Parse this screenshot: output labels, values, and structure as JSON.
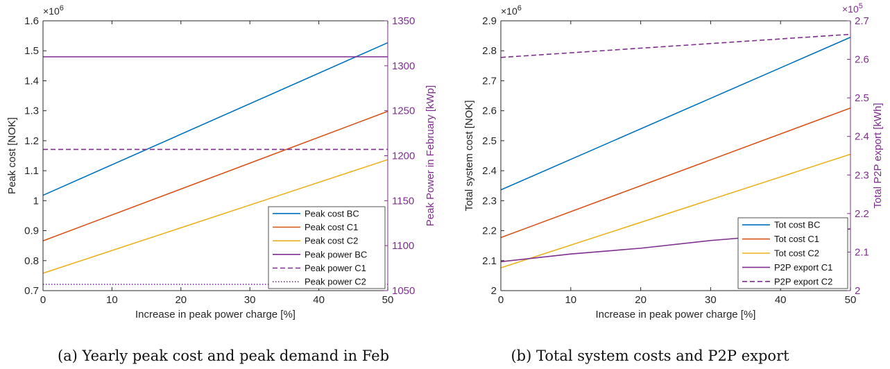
{
  "chart_data": [
    {
      "type": "line",
      "caption": "(a) Yearly peak cost and peak demand in Feb",
      "xlabel": "Increase in peak power charge [%]",
      "ylabel": "Peak cost [NOK]",
      "ylabel_right": "Peak Power in February [kWp]",
      "y_exponent": "×10",
      "y_exponent_power": "6",
      "xlim": [
        0,
        50
      ],
      "ylim": [
        0.7,
        1.6
      ],
      "ylim_right": [
        1050,
        1350
      ],
      "xticks": [
        "0",
        "10",
        "20",
        "30",
        "40",
        "50"
      ],
      "yticks": [
        "0.7",
        "0.8",
        "0.9",
        "1",
        "1.1",
        "1.2",
        "1.3",
        "1.4",
        "1.5",
        "1.6"
      ],
      "yticks_right": [
        "1050",
        "1100",
        "1150",
        "1200",
        "1250",
        "1300",
        "1350"
      ],
      "legend_position": "bottom-right",
      "grid": false,
      "series": [
        {
          "name": "Peak cost BC",
          "axis": "left",
          "color": "#0072BD",
          "dash": "solid",
          "x": [
            0,
            50
          ],
          "y": [
            1.018,
            1.527
          ]
        },
        {
          "name": "Peak cost C1",
          "axis": "left",
          "color": "#D95319",
          "dash": "solid",
          "x": [
            0,
            50
          ],
          "y": [
            0.866,
            1.298
          ]
        },
        {
          "name": "Peak cost C2",
          "axis": "left",
          "color": "#EDB120",
          "dash": "solid",
          "x": [
            0,
            50
          ],
          "y": [
            0.758,
            1.137
          ]
        },
        {
          "name": "Peak power BC",
          "axis": "right",
          "color": "#7E2F8E",
          "dash": "solid",
          "x": [
            0,
            50
          ],
          "y": [
            1310,
            1310
          ]
        },
        {
          "name": "Peak power C1",
          "axis": "right",
          "color": "#7E2F8E",
          "dash": "dashed",
          "x": [
            0,
            50
          ],
          "y": [
            1207,
            1207
          ]
        },
        {
          "name": "Peak power C2",
          "axis": "right",
          "color": "#7E2F8E",
          "dash": "dotted",
          "x": [
            0,
            50
          ],
          "y": [
            1057,
            1057
          ]
        }
      ]
    },
    {
      "type": "line",
      "caption": "(b) Total system costs and P2P export",
      "xlabel": "Increase in peak power charge [%]",
      "ylabel": "Total system cost [NOK]",
      "ylabel_right": "Total P2P export [kWh]",
      "y_exponent": "×10",
      "y_exponent_power": "6",
      "y_exponent_right": "×10",
      "y_exponent_right_power": "5",
      "xlim": [
        0,
        50
      ],
      "ylim": [
        2.0,
        2.9
      ],
      "ylim_right": [
        2.0,
        2.7
      ],
      "xticks": [
        "0",
        "10",
        "20",
        "30",
        "40",
        "50"
      ],
      "yticks": [
        "2",
        "2.1",
        "2.2",
        "2.3",
        "2.4",
        "2.5",
        "2.6",
        "2.7",
        "2.8",
        "2.9"
      ],
      "yticks_right": [
        "2",
        "2.1",
        "2.2",
        "2.3",
        "2.4",
        "2.5",
        "2.6",
        "2.7"
      ],
      "legend_position": "bottom-right",
      "grid": false,
      "series": [
        {
          "name": "Tot cost BC",
          "axis": "left",
          "color": "#0072BD",
          "dash": "solid",
          "x": [
            0,
            50
          ],
          "y": [
            2.336,
            2.845
          ]
        },
        {
          "name": "Tot cost C1",
          "axis": "left",
          "color": "#D95319",
          "dash": "solid",
          "x": [
            0,
            50
          ],
          "y": [
            2.177,
            2.609
          ]
        },
        {
          "name": "Tot cost C2",
          "axis": "left",
          "color": "#EDB120",
          "dash": "solid",
          "x": [
            0,
            50
          ],
          "y": [
            2.076,
            2.455
          ]
        },
        {
          "name": "P2P export C1",
          "axis": "right",
          "color": "#7E2F8E",
          "dash": "solid",
          "x": [
            0,
            10,
            20,
            30,
            40,
            50
          ],
          "y": [
            2.075,
            2.095,
            2.11,
            2.13,
            2.145,
            2.16
          ]
        },
        {
          "name": "P2P export C2",
          "axis": "right",
          "color": "#7E2F8E",
          "dash": "dashed",
          "x": [
            0,
            50
          ],
          "y": [
            2.605,
            2.665
          ]
        }
      ]
    }
  ]
}
